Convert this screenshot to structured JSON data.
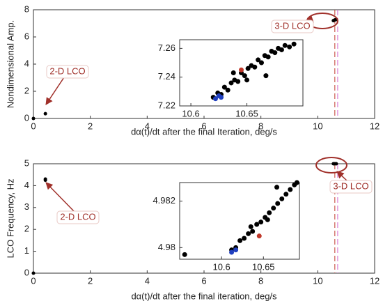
{
  "chart_data": [
    {
      "type": "scatter",
      "xlabel": "dα(t)/dt after the final Iteration, deg/s",
      "ylabel": "Nondimensional Amp.",
      "xlim": [
        0,
        12
      ],
      "xticks": [
        0,
        2,
        4,
        6,
        8,
        10,
        12
      ],
      "ylim": [
        0,
        8
      ],
      "yticks": [
        0,
        2,
        4,
        6,
        8
      ],
      "series": [
        {
          "color": "#000000",
          "x": [
            0,
            0.42,
            10.55,
            10.6,
            10.65
          ],
          "y": [
            0,
            0.35,
            7.2,
            7.25,
            7.28
          ]
        }
      ],
      "vlines": [
        {
          "x": 10.6,
          "color": "#c0392b"
        },
        {
          "x": 10.7,
          "color": "#d36ad3"
        }
      ],
      "annotations": [
        "2-D LCO",
        "3-D LCO"
      ]
    },
    {
      "type": "scatter",
      "xlim": [
        10.59,
        10.7
      ],
      "xticks": [
        10.6,
        10.65
      ],
      "ylim": [
        7.22,
        7.266
      ],
      "yticks": [
        7.22,
        7.24,
        7.26
      ],
      "series": [
        {
          "color": "#000000",
          "x": [
            10.62,
            10.624,
            10.627,
            10.63,
            10.633,
            10.636,
            10.639,
            10.642,
            10.645,
            10.648,
            10.651,
            10.654,
            10.657,
            10.66,
            10.663,
            10.666,
            10.669,
            10.672,
            10.675,
            10.678,
            10.681,
            10.684,
            10.688,
            10.692,
            10.667,
            10.638,
            10.65
          ],
          "y": [
            7.226,
            7.229,
            7.228,
            7.233,
            7.231,
            7.236,
            7.238,
            7.237,
            7.243,
            7.241,
            7.246,
            7.248,
            7.247,
            7.252,
            7.25,
            7.255,
            7.254,
            7.258,
            7.257,
            7.26,
            7.259,
            7.262,
            7.261,
            7.263,
            7.241,
            7.243,
            7.238
          ]
        },
        {
          "color": "#1f3fbf",
          "x": [
            10.622,
            10.625,
            10.627
          ],
          "y": [
            7.225,
            7.227,
            7.226
          ]
        },
        {
          "color": "#c0392b",
          "x": [
            10.645
          ],
          "y": [
            7.245
          ]
        }
      ]
    },
    {
      "type": "scatter",
      "xlabel": "dα(t)/dt after the final iteration, deg/s",
      "ylabel": "LCO Frequency, Hz",
      "xlim": [
        0,
        12
      ],
      "xticks": [
        0,
        2,
        4,
        6,
        8,
        10,
        12
      ],
      "ylim": [
        0,
        5
      ],
      "yticks": [
        0,
        1,
        2,
        3,
        4,
        5
      ],
      "series": [
        {
          "color": "#000000",
          "x": [
            0,
            0.42,
            0.42,
            10.55,
            10.6,
            10.65
          ],
          "y": [
            0,
            4.25,
            4.3,
            5,
            5,
            5
          ]
        }
      ],
      "vlines": [
        {
          "x": 10.6,
          "color": "#c0392b"
        },
        {
          "x": 10.7,
          "color": "#d36ad3"
        }
      ],
      "annotations": [
        "2-D LCO",
        "3-D LCO"
      ]
    },
    {
      "type": "scatter",
      "xlim": [
        10.55,
        10.693
      ],
      "xticks": [
        10.6,
        10.65
      ],
      "ylim": [
        4.9795,
        4.9828
      ],
      "yticks": [
        4.98,
        4.982
      ],
      "series": [
        {
          "color": "#000000",
          "x": [
            10.556,
            10.612,
            10.617,
            10.622,
            10.627,
            10.632,
            10.637,
            10.642,
            10.647,
            10.652,
            10.657,
            10.662,
            10.667,
            10.672,
            10.677,
            10.682,
            10.687,
            10.69,
            10.666,
            10.635,
            10.655
          ],
          "y": [
            4.9797,
            4.9799,
            4.98,
            4.9803,
            4.9804,
            4.9806,
            4.9807,
            4.981,
            4.9811,
            4.9813,
            4.9815,
            4.9817,
            4.9819,
            4.9821,
            4.9823,
            4.9825,
            4.9827,
            4.9828,
            4.9826,
            4.9809,
            4.9812
          ]
        },
        {
          "color": "#1f3fbf",
          "x": [
            10.612,
            10.617
          ],
          "y": [
            4.9798,
            4.9799
          ]
        },
        {
          "color": "#c0392b",
          "x": [
            10.645
          ],
          "y": [
            4.9805
          ]
        }
      ]
    }
  ]
}
